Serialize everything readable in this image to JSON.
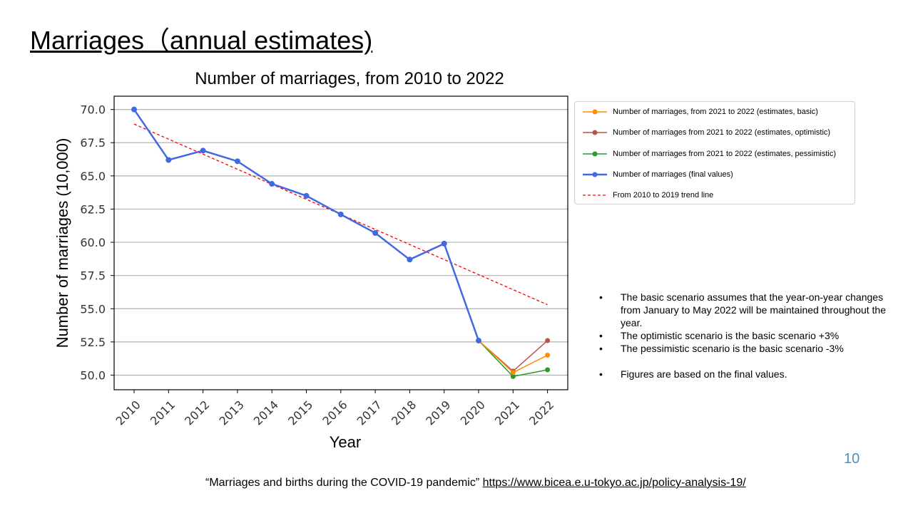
{
  "slide": {
    "title": "Marriages（annual estimates)",
    "page_number": "10",
    "source_text": "“Marriages and births during the COVID-19 pandemic”",
    "source_link": "https://www.bicea.e.u-tokyo.ac.jp/policy-analysis-19/"
  },
  "notes": [
    "The basic scenario assumes that the year-on-year changes from January to May 2022 will be maintained throughout  the year.",
    "The optimistic scenario is the basic scenario +3%",
    "The pessimistic scenario is the basic scenario -3%",
    "Figures are based on the final values."
  ],
  "colors": {
    "final": "#4169e1",
    "basic": "#ff8c00",
    "optimistic": "#b5554f",
    "pessimistic": "#2a9a2a",
    "trend": "#ff0000",
    "grid": "#b0b0b0"
  },
  "chart_data": {
    "type": "line",
    "title": "Number of marriages, from 2010 to 2022",
    "xlabel": "Year",
    "ylabel": "Number of marriages (10,000)",
    "categories": [
      "2010",
      "2011",
      "2012",
      "2013",
      "2014",
      "2015",
      "2016",
      "2017",
      "2018",
      "2019",
      "2020",
      "2021",
      "2022"
    ],
    "yticks": [
      "70.0",
      "67.5",
      "65.0",
      "62.5",
      "60.0",
      "57.5",
      "55.0",
      "52.5",
      "50.0"
    ],
    "ylim": [
      48.9,
      71.0
    ],
    "grid": "horizontal",
    "legend_position": "right",
    "series": [
      {
        "name": "Number of marriages, from 2021 to 2022 (estimates, basic)",
        "key": "basic",
        "style": "marker-line",
        "x": [
          "2020",
          "2021",
          "2022"
        ],
        "values": [
          52.6,
          50.2,
          51.5
        ]
      },
      {
        "name": "Number of marriages from 2021 to 2022 (estimates, optimistic)",
        "key": "optimistic",
        "style": "marker-line",
        "x": [
          "2020",
          "2021",
          "2022"
        ],
        "values": [
          52.6,
          50.3,
          52.6
        ]
      },
      {
        "name": "Number of marriages from 2021 to 2022 (estimates, pessimistic)",
        "key": "pessimistic",
        "style": "marker-line",
        "x": [
          "2020",
          "2021",
          "2022"
        ],
        "values": [
          52.6,
          49.9,
          50.4
        ]
      },
      {
        "name": "Number  of  marriages  (final  values)",
        "key": "final",
        "style": "marker-line-thick",
        "x": [
          "2010",
          "2011",
          "2012",
          "2013",
          "2014",
          "2015",
          "2016",
          "2017",
          "2018",
          "2019",
          "2020"
        ],
        "values": [
          70.0,
          66.2,
          66.9,
          66.1,
          64.4,
          63.5,
          62.1,
          60.7,
          58.7,
          59.9,
          52.6
        ]
      },
      {
        "name": "From  2010  to  2019  trend  line",
        "key": "trend",
        "style": "dashed",
        "x": [
          "2010",
          "2022"
        ],
        "values": [
          68.9,
          55.3
        ]
      }
    ]
  }
}
